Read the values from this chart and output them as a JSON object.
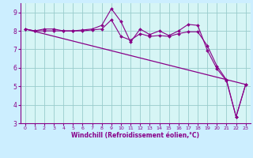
{
  "xlabel": "Windchill (Refroidissement éolien,°C)",
  "xlim": [
    -0.5,
    23.5
  ],
  "ylim": [
    3,
    9.5
  ],
  "yticks": [
    3,
    4,
    5,
    6,
    7,
    8,
    9
  ],
  "xticks": [
    0,
    1,
    2,
    3,
    4,
    5,
    6,
    7,
    8,
    9,
    10,
    11,
    12,
    13,
    14,
    15,
    16,
    17,
    18,
    19,
    20,
    21,
    22,
    23
  ],
  "bg_color": "#cceeff",
  "plot_bg_color": "#d6f5f5",
  "line_color": "#880088",
  "grid_color": "#99cccc",
  "series1_x": [
    0,
    1,
    2,
    3,
    4,
    5,
    6,
    7,
    8,
    9,
    10,
    11,
    12,
    13,
    14,
    15,
    16,
    17,
    18,
    19,
    20,
    21,
    22,
    23
  ],
  "series1_y": [
    8.1,
    8.0,
    8.1,
    8.1,
    8.0,
    8.0,
    8.05,
    8.1,
    8.3,
    9.2,
    8.5,
    7.4,
    8.1,
    7.8,
    8.0,
    7.75,
    8.0,
    8.35,
    8.3,
    6.95,
    5.95,
    5.3,
    3.35,
    5.1
  ],
  "series2_x": [
    0,
    1,
    2,
    3,
    4,
    5,
    6,
    7,
    8,
    9,
    10,
    11,
    12,
    13,
    14,
    15,
    16,
    17,
    18,
    19,
    20,
    21,
    22,
    23
  ],
  "series2_y": [
    8.1,
    8.0,
    8.0,
    8.0,
    8.0,
    8.0,
    8.0,
    8.05,
    8.1,
    8.6,
    7.7,
    7.5,
    7.85,
    7.7,
    7.75,
    7.7,
    7.85,
    7.95,
    7.95,
    7.2,
    6.1,
    5.35,
    3.35,
    5.1
  ],
  "trend_x": [
    0,
    23
  ],
  "trend_y": [
    8.1,
    5.1
  ]
}
